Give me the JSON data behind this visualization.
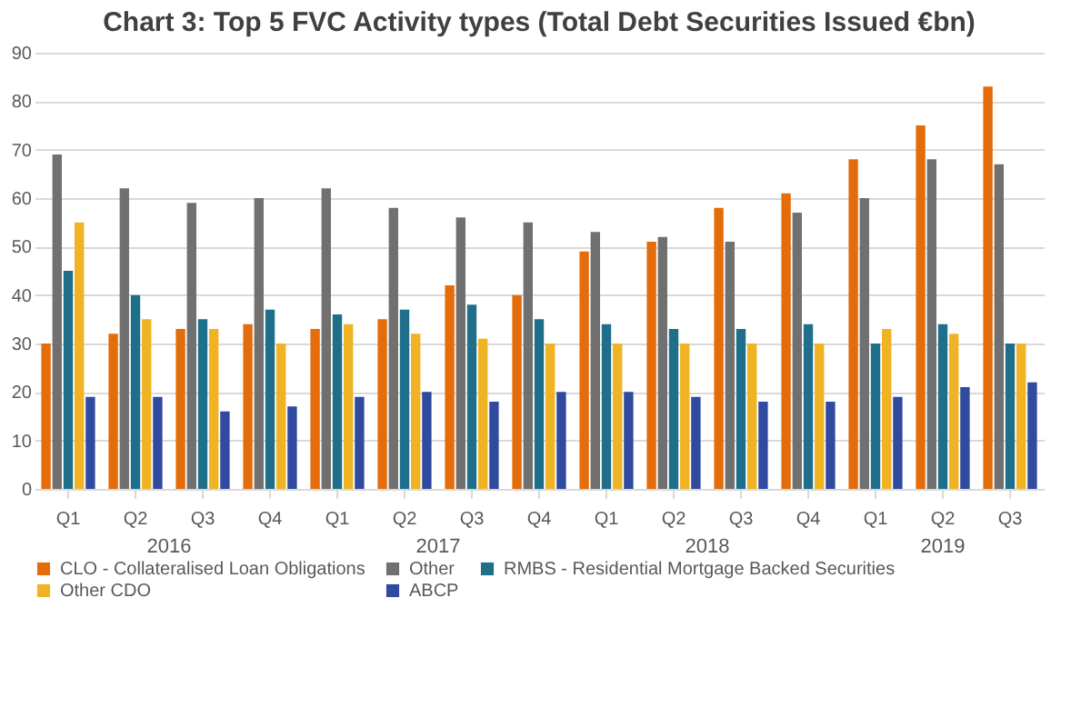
{
  "chart_data": {
    "type": "bar",
    "title": "Chart 3: Top 5 FVC Activity types (Total Debt Securities Issued €bn)",
    "categories": [
      "Q1",
      "Q2",
      "Q3",
      "Q4",
      "Q1",
      "Q2",
      "Q3",
      "Q4",
      "Q1",
      "Q2",
      "Q3",
      "Q4",
      "Q1",
      "Q2",
      "Q3"
    ],
    "annotations": [
      "2016",
      "2017",
      "2018",
      "2019"
    ],
    "series": [
      {
        "name": "CLO - Collateralised Loan Obligations",
        "color": "#e46c0a",
        "values": [
          30,
          32,
          33,
          34,
          33,
          35,
          42,
          40,
          49,
          51,
          58,
          61,
          68,
          75,
          83
        ]
      },
      {
        "name": "Other",
        "color": "#707070",
        "values": [
          69,
          62,
          59,
          60,
          62,
          58,
          56,
          55,
          53,
          52,
          51,
          57,
          60,
          68,
          67
        ]
      },
      {
        "name": "RMBS - Residential Mortgage Backed Securities",
        "color": "#1f6f8b",
        "values": [
          45,
          40,
          35,
          37,
          36,
          37,
          38,
          35,
          34,
          33,
          33,
          34,
          30,
          34,
          30
        ]
      },
      {
        "name": "Other CDO",
        "color": "#f0b323",
        "values": [
          55,
          35,
          33,
          30,
          34,
          32,
          31,
          30,
          30,
          30,
          30,
          30,
          33,
          32,
          30
        ]
      },
      {
        "name": "ABCP",
        "color": "#2f4a9e",
        "values": [
          19,
          19,
          16,
          17,
          19,
          20,
          18,
          20,
          20,
          19,
          18,
          18,
          19,
          21,
          22
        ]
      }
    ],
    "ylim": [
      0,
      90
    ],
    "yticks": [
      0,
      10,
      20,
      30,
      40,
      50,
      60,
      70,
      80,
      90
    ],
    "grid": "y",
    "legend": "bottom"
  }
}
